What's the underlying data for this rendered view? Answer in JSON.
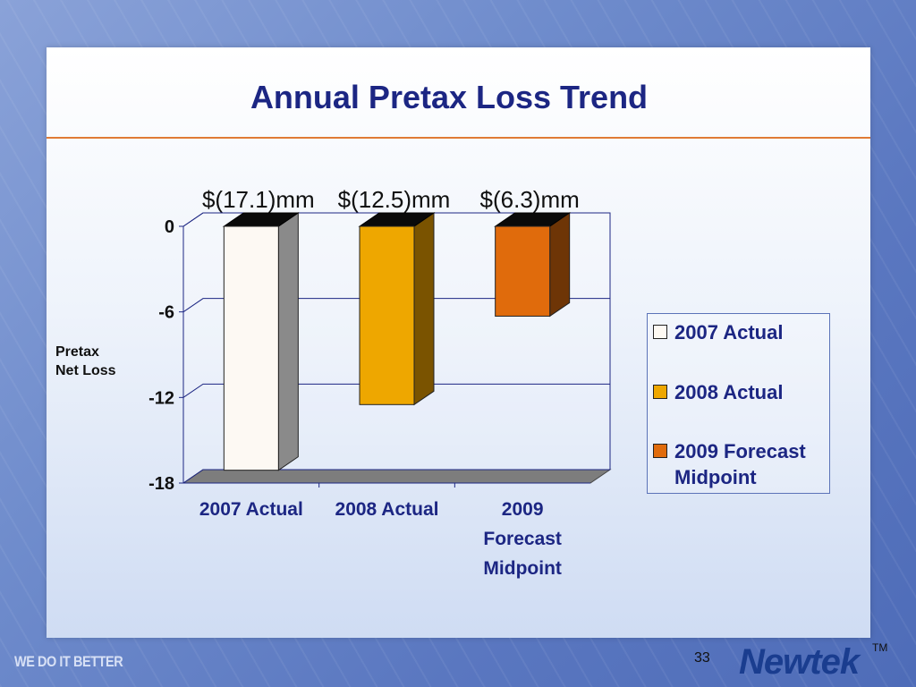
{
  "slide": {
    "title": "Annual Pretax Loss Trend",
    "tagline": "WE DO IT BETTER",
    "page_number": "33",
    "brand": "Newtek",
    "trademark": "TM"
  },
  "chart_data": {
    "type": "bar",
    "title": "Annual Pretax Loss Trend",
    "categories": [
      "2007 Actual",
      "2008 Actual",
      "2009 Forecast Midpoint"
    ],
    "category_lines": [
      [
        "2007 Actual"
      ],
      [
        "2008 Actual"
      ],
      [
        "2009",
        "Forecast",
        "Midpoint"
      ]
    ],
    "values": [
      -17.1,
      -12.5,
      -6.3
    ],
    "value_labels": [
      "$(17.1)mm",
      "$(12.5)mm",
      "$(6.3)mm"
    ],
    "ylabel_lines": [
      "Pretax",
      "Net Loss"
    ],
    "ylim": [
      -18,
      0
    ],
    "yticks": [
      0,
      -6,
      -12,
      -18
    ],
    "grid": true,
    "legend_placement": "right",
    "legend": [
      {
        "label_lines": [
          "2007 Actual"
        ],
        "color": "#fdf9f3"
      },
      {
        "label_lines": [
          "2008 Actual"
        ],
        "color": "#eea700"
      },
      {
        "label_lines": [
          "2009 Forecast",
          "Midpoint"
        ],
        "color": "#e06b0c"
      }
    ],
    "colors": [
      "#fdf9f3",
      "#eea700",
      "#e06b0c"
    ],
    "side_colors": [
      "#8a8a8a",
      "#7a5300",
      "#6e3506"
    ]
  }
}
